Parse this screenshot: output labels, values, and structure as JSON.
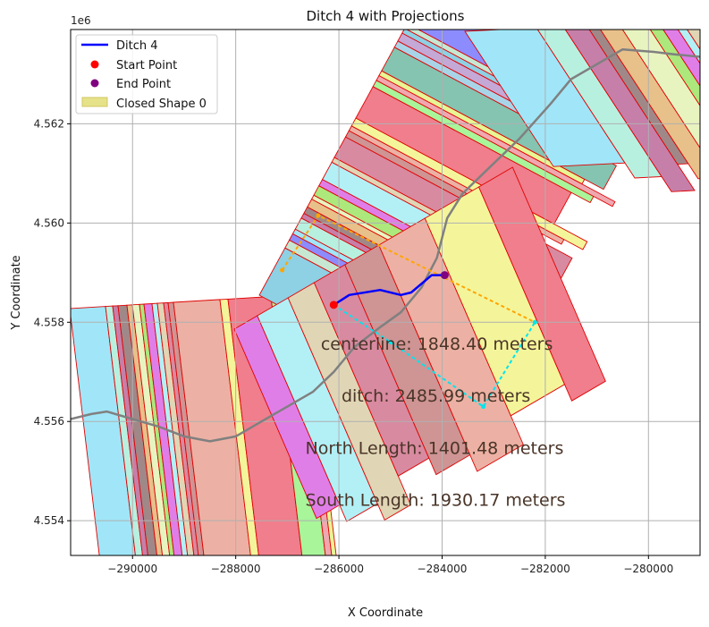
{
  "chart_data": {
    "type": "scatter",
    "title": "Ditch 4 with Projections",
    "xlabel": "X Coordinate",
    "ylabel": "Y Coordinate",
    "y_offset_label": "1e6",
    "xlim": [
      -291200,
      -279000
    ],
    "ylim": [
      4553.3,
      4563.9
    ],
    "x_ticks": [
      -290000,
      -288000,
      -286000,
      -284000,
      -282000,
      -280000
    ],
    "x_tick_labels": [
      "−290000",
      "−288000",
      "−286000",
      "−284000",
      "−282000",
      "−280000"
    ],
    "y_ticks": [
      4554,
      4556,
      4558,
      4560,
      4562
    ],
    "y_tick_labels": [
      "4.554",
      "4.556",
      "4.558",
      "4.560",
      "4.562"
    ],
    "grid": true,
    "legend_position": "top-left",
    "legend": [
      {
        "label": "Ditch 4",
        "kind": "line",
        "color": "#0000ff"
      },
      {
        "label": "Start Point",
        "kind": "dot",
        "color": "#ff0000"
      },
      {
        "label": "End Point",
        "kind": "dot",
        "color": "#800080"
      },
      {
        "label": "Closed Shape 0",
        "kind": "patch",
        "color": "#e6e28a"
      }
    ],
    "ditch": {
      "name": "Ditch 4",
      "color": "#0000ff",
      "points": [
        [
          -286100,
          4558.35
        ],
        [
          -285800,
          4558.55
        ],
        [
          -285200,
          4558.65
        ],
        [
          -284800,
          4558.55
        ],
        [
          -284600,
          4558.6
        ],
        [
          -284200,
          4558.95
        ],
        [
          -283950,
          4558.95
        ]
      ]
    },
    "start_point": {
      "x": -286100,
      "y": 4558.35,
      "color": "#ff0000"
    },
    "end_point": {
      "x": -283950,
      "y": 4558.95,
      "color": "#800080"
    },
    "centerline": {
      "color": "#808080",
      "points": [
        [
          -291200,
          4556.05
        ],
        [
          -290800,
          4556.15
        ],
        [
          -290500,
          4556.2
        ],
        [
          -290000,
          4556.05
        ],
        [
          -289500,
          4555.9
        ],
        [
          -289000,
          4555.7
        ],
        [
          -288500,
          4555.6
        ],
        [
          -288000,
          4555.7
        ],
        [
          -287500,
          4556.0
        ],
        [
          -287000,
          4556.3
        ],
        [
          -286500,
          4556.6
        ],
        [
          -286100,
          4557.0
        ],
        [
          -285700,
          4557.5
        ],
        [
          -285200,
          4557.9
        ],
        [
          -284800,
          4558.2
        ],
        [
          -284400,
          4558.7
        ],
        [
          -284100,
          4559.3
        ],
        [
          -283900,
          4560.1
        ],
        [
          -283600,
          4560.6
        ],
        [
          -283100,
          4561.1
        ],
        [
          -282500,
          4561.7
        ],
        [
          -281900,
          4562.4
        ],
        [
          -281500,
          4562.9
        ],
        [
          -281000,
          4563.2
        ],
        [
          -280500,
          4563.5
        ],
        [
          -279900,
          4563.45
        ],
        [
          -279500,
          4563.4
        ],
        [
          -279000,
          4563.35
        ]
      ]
    },
    "north_projection": {
      "color": "#ffa500",
      "points": [
        [
          -287100,
          4559.05
        ],
        [
          -286400,
          4560.15
        ],
        [
          -282200,
          4558.0
        ]
      ]
    },
    "south_projection": {
      "color": "#00e5ee",
      "points": [
        [
          -286100,
          4558.35
        ],
        [
          -285000,
          4557.6
        ],
        [
          -283200,
          4556.3
        ],
        [
          -282200,
          4558.0
        ]
      ]
    },
    "annotations": [
      {
        "text": "centerline: 1848.40 meters",
        "x": -286350,
        "y": 4557.45
      },
      {
        "text": "ditch: 2485.99 meters",
        "x": -285950,
        "y": 4556.4
      },
      {
        "text": "North Length: 1401.48 meters",
        "x": -286650,
        "y": 4555.35
      },
      {
        "text": "South Length: 1930.17 meters",
        "x": -286650,
        "y": 4554.3
      }
    ],
    "shape_palette": [
      "#b2f0f6",
      "#a8f59a",
      "#c6e8d2",
      "#e8f4c0",
      "#ecb1a4",
      "#a8d4e8",
      "#c67fa8",
      "#e0d6b6",
      "#f0a8b0",
      "#8c8cff",
      "#ace87c",
      "#f4f59a",
      "#c4a8d6",
      "#a08888",
      "#d88aa0",
      "#e7f594",
      "#a0e6f8",
      "#e07ee8",
      "#f07e8c",
      "#8ed0e4",
      "#e8c08a",
      "#cf9494",
      "#84c4b0",
      "#b8f0e0"
    ]
  }
}
